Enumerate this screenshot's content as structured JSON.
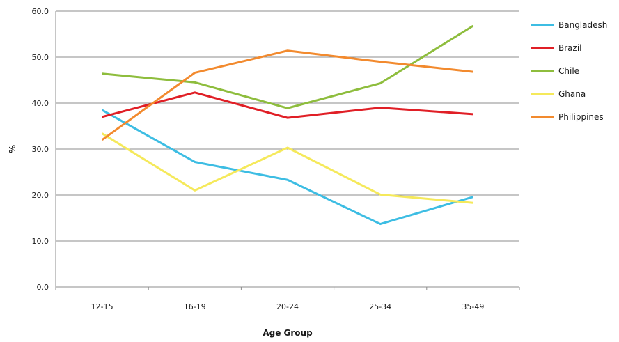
{
  "chart_data": {
    "type": "line",
    "title": "",
    "xlabel": "Age Group",
    "ylabel": "%",
    "categories": [
      "12-15",
      "16-19",
      "20-24",
      "25-34",
      "35-49"
    ],
    "ylim": [
      0,
      60
    ],
    "yticks": [
      "0.0",
      "10.0",
      "20.0",
      "30.0",
      "40.0",
      "50.0",
      "60.0"
    ],
    "grid": true,
    "legend": "right",
    "series": [
      {
        "name": "Bangladesh",
        "color": "#3dbde3",
        "values": [
          38.5,
          27.2,
          23.3,
          13.7,
          19.6
        ]
      },
      {
        "name": "Brazil",
        "color": "#e01f26",
        "values": [
          37.0,
          42.3,
          36.8,
          39.0,
          37.6
        ]
      },
      {
        "name": "Chile",
        "color": "#8ebd3d",
        "values": [
          46.4,
          44.5,
          38.9,
          44.3,
          56.8
        ]
      },
      {
        "name": "Ghana",
        "color": "#f5e95b",
        "values": [
          33.4,
          21.0,
          30.3,
          20.1,
          18.3
        ]
      },
      {
        "name": "Philippines",
        "color": "#f28a2e",
        "values": [
          32.0,
          46.6,
          51.4,
          49.0,
          46.8
        ]
      }
    ]
  }
}
